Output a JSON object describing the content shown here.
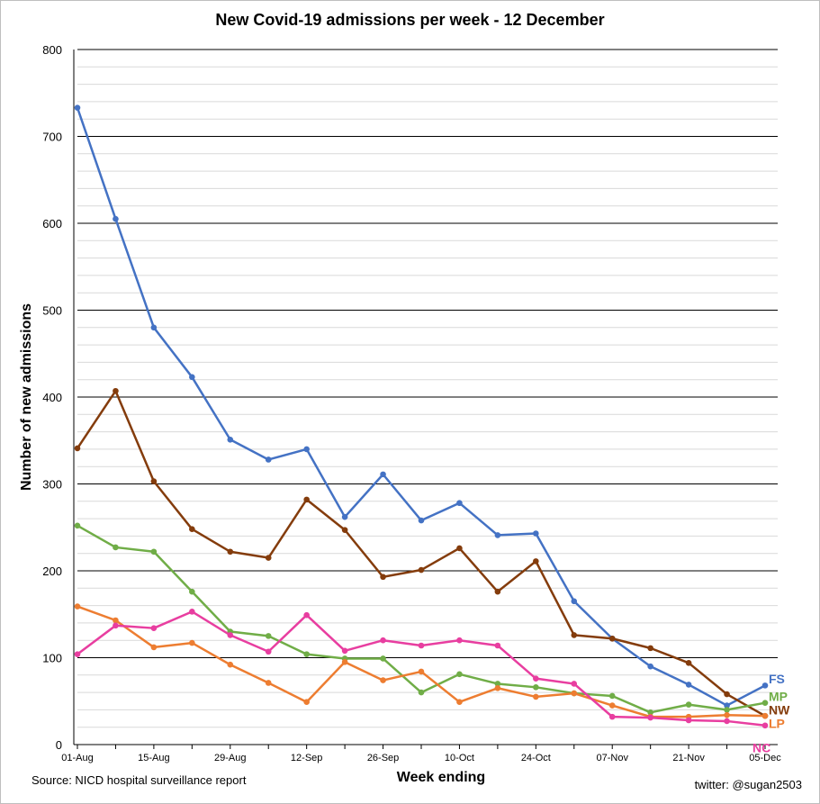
{
  "chart_data": {
    "type": "line",
    "title": "New Covid-19  admissions  per week - 12 December",
    "xlabel": "Week ending",
    "ylabel": "Number of new admissions",
    "source": "Source: NICD hospital surveillance report",
    "credit": "twitter: @sugan2503",
    "ylim": [
      0,
      800
    ],
    "yticks": [
      0,
      100,
      200,
      300,
      400,
      500,
      600,
      700,
      800
    ],
    "grid": true,
    "x": [
      "01-Aug",
      "08-Aug",
      "15-Aug",
      "22-Aug",
      "29-Aug",
      "05-Sep",
      "12-Sep",
      "19-Sep",
      "26-Sep",
      "03-Oct",
      "10-Oct",
      "17-Oct",
      "24-Oct",
      "31-Oct",
      "07-Nov",
      "14-Nov",
      "21-Nov",
      "28-Nov",
      "05-Dec"
    ],
    "xtick_labels": [
      "01-Aug",
      "15-Aug",
      "29-Aug",
      "12-Sep",
      "26-Sep",
      "10-Oct",
      "24-Oct",
      "07-Nov",
      "21-Nov",
      "05-Dec"
    ],
    "series": [
      {
        "name": "FS",
        "color": "#4472c4",
        "values": [
          733,
          605,
          480,
          423,
          351,
          328,
          340,
          262,
          311,
          258,
          278,
          241,
          243,
          165,
          122,
          90,
          69,
          45,
          68
        ]
      },
      {
        "name": "NW",
        "color": "#843c0c",
        "values": [
          341,
          407,
          303,
          248,
          222,
          215,
          282,
          247,
          193,
          201,
          226,
          176,
          211,
          126,
          122,
          111,
          94,
          58,
          33
        ]
      },
      {
        "name": "MP",
        "color": "#70ad47",
        "values": [
          252,
          227,
          222,
          176,
          130,
          125,
          104,
          99,
          99,
          60,
          81,
          70,
          66,
          59,
          56,
          37,
          46,
          40,
          48
        ]
      },
      {
        "name": "LP",
        "color": "#ed7d31",
        "values": [
          159,
          143,
          112,
          117,
          92,
          71,
          49,
          95,
          74,
          84,
          49,
          65,
          55,
          59,
          45,
          32,
          32,
          34,
          33
        ]
      },
      {
        "name": "NC",
        "color": "#e83ea0",
        "values": [
          104,
          137,
          134,
          153,
          126,
          107,
          149,
          108,
          120,
          114,
          120,
          114,
          76,
          70,
          32,
          31,
          28,
          27,
          22
        ]
      }
    ]
  }
}
